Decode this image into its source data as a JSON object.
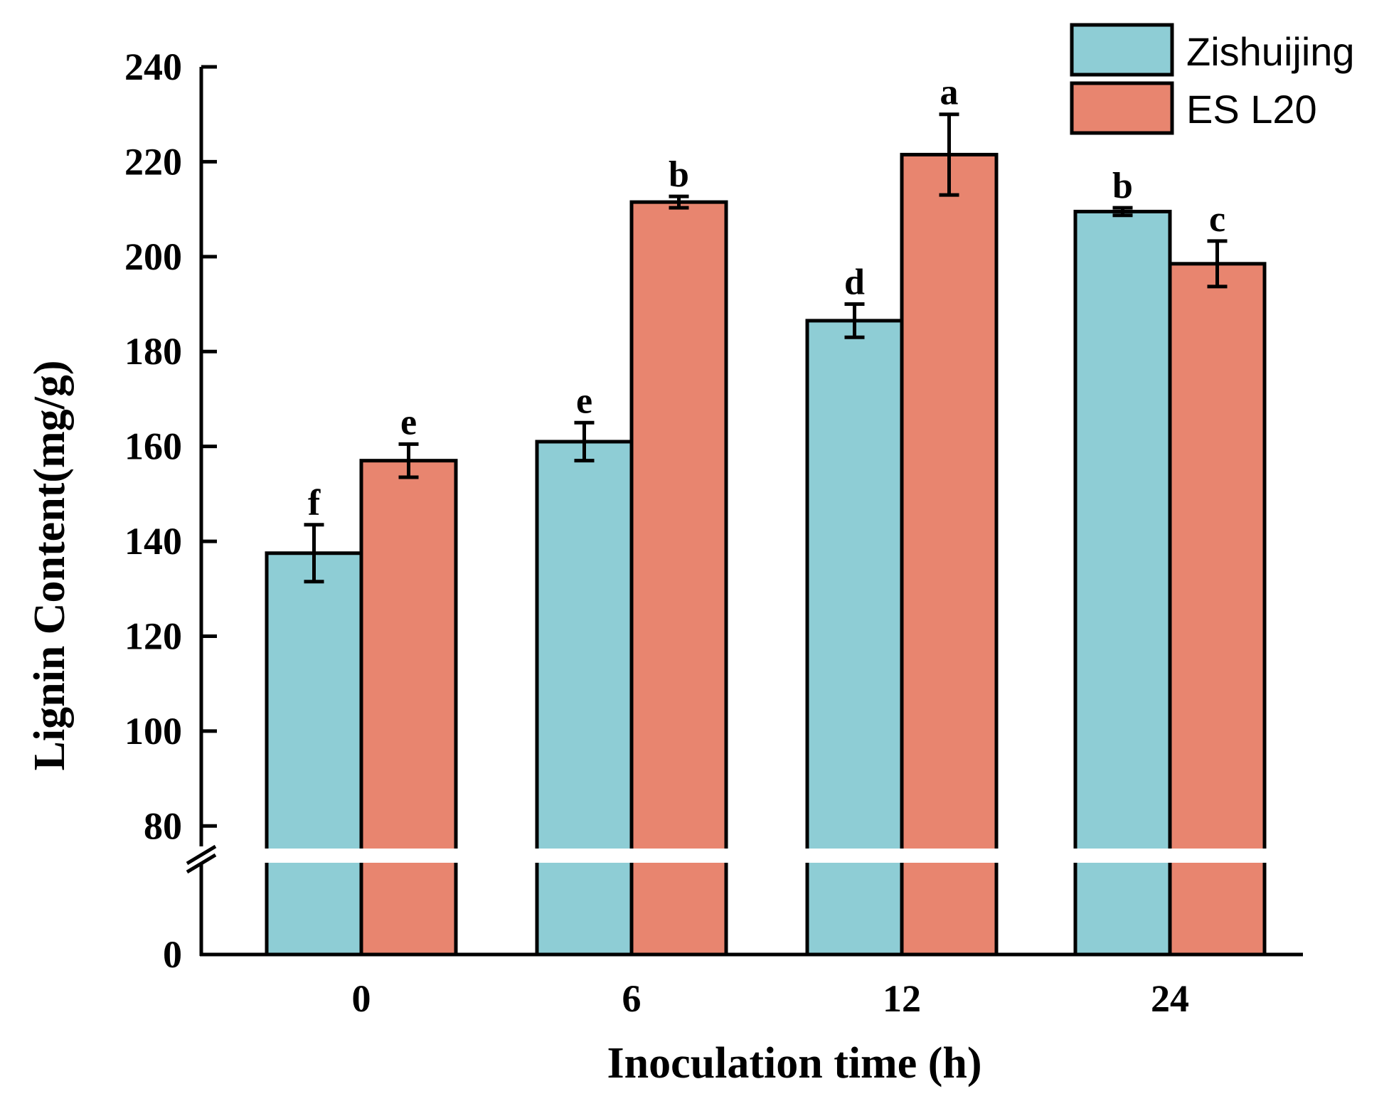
{
  "chart_data": {
    "type": "bar",
    "title": "",
    "xlabel": "Inoculation time (h)",
    "ylabel": "Lignin Content(mg/g)",
    "categories": [
      "0",
      "6",
      "12",
      "24"
    ],
    "series": [
      {
        "name": "Zishuijing",
        "color": "#8ecdd5",
        "values": [
          137.5,
          161,
          186.5,
          209.5
        ],
        "errors": [
          6,
          4,
          3.5,
          0.8
        ],
        "letters": [
          "f",
          "e",
          "d",
          "b"
        ]
      },
      {
        "name": "ES L20",
        "color": "#e8856f",
        "values": [
          157,
          211.5,
          221.5,
          198.5
        ],
        "errors": [
          3.5,
          1.2,
          8.5,
          4.8
        ],
        "letters": [
          "e",
          "b",
          "a",
          "c"
        ]
      }
    ],
    "ylim_upper": [
      73,
      240
    ],
    "y_ticks": [
      80,
      100,
      120,
      140,
      160,
      180,
      200,
      220,
      240
    ],
    "y_tick_labels": [
      "80",
      "100",
      "120",
      "140",
      "160",
      "180",
      "200",
      "220",
      "240"
    ],
    "y_break": true,
    "y_baseline_label": "0",
    "legend_position": "top-right",
    "grid": false
  }
}
